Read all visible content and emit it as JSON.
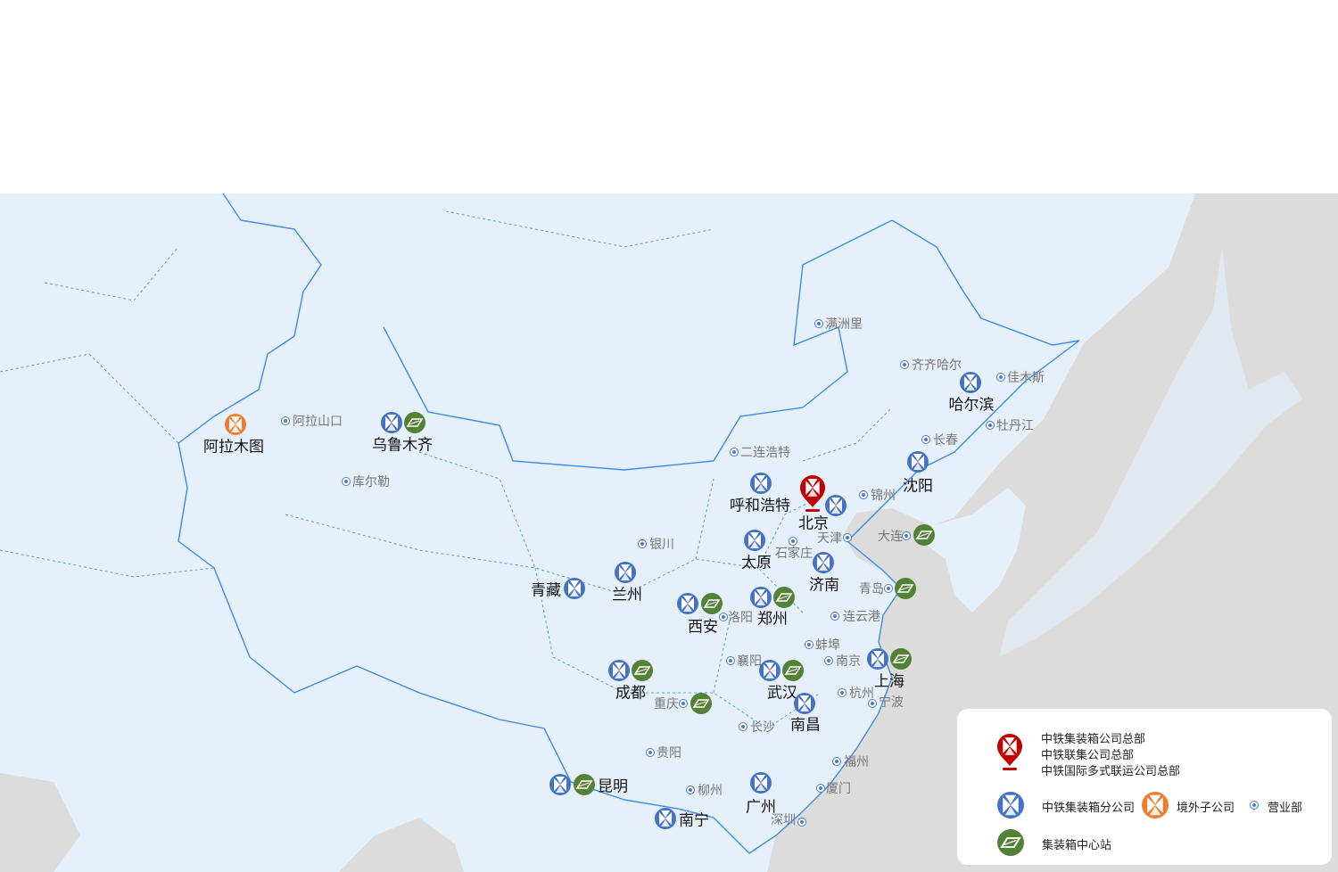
{
  "colors": {
    "branch": "#4472c4",
    "overseas": "#ed7d31",
    "hq": "#c00000",
    "center": "#538135",
    "office": "#4a78c8",
    "land": "#e6f0fb",
    "sea": "#dcdcdc",
    "border": "#3d8be8"
  },
  "cities": [
    {
      "name": "乌鲁木齐",
      "icons": [
        "branch",
        "center"
      ]
    },
    {
      "name": "阿拉木图",
      "icons": [
        "overseas"
      ]
    },
    {
      "name": "哈尔滨",
      "icons": [
        "branch"
      ]
    },
    {
      "name": "沈阳",
      "icons": [
        "branch"
      ]
    },
    {
      "name": "呼和浩特",
      "icons": [
        "branch"
      ]
    },
    {
      "name": "北京",
      "icons": [
        "hq",
        "branch"
      ]
    },
    {
      "name": "太原",
      "icons": [
        "branch"
      ]
    },
    {
      "name": "济南",
      "icons": [
        "branch"
      ]
    },
    {
      "name": "兰州",
      "icons": [
        "branch"
      ]
    },
    {
      "name": "青藏",
      "icons": [
        "branch"
      ]
    },
    {
      "name": "西安",
      "icons": [
        "branch",
        "center"
      ]
    },
    {
      "name": "郑州",
      "icons": [
        "branch",
        "center"
      ]
    },
    {
      "name": "成都",
      "icons": [
        "branch",
        "center"
      ]
    },
    {
      "name": "武汉",
      "icons": [
        "branch",
        "center"
      ]
    },
    {
      "name": "上海",
      "icons": [
        "branch",
        "center"
      ]
    },
    {
      "name": "南昌",
      "icons": [
        "branch"
      ]
    },
    {
      "name": "昆明",
      "icons": [
        "branch",
        "center"
      ]
    },
    {
      "name": "南宁",
      "icons": [
        "branch"
      ]
    },
    {
      "name": "广州",
      "icons": [
        "branch"
      ]
    }
  ],
  "offices": [
    {
      "name": "满洲里",
      "center": false
    },
    {
      "name": "齐齐哈尔",
      "center": false
    },
    {
      "name": "佳木斯",
      "center": false
    },
    {
      "name": "牡丹江",
      "center": false
    },
    {
      "name": "长春",
      "center": false
    },
    {
      "name": "二连浩特",
      "center": false
    },
    {
      "name": "锦州",
      "center": false
    },
    {
      "name": "天津",
      "center": false
    },
    {
      "name": "石家庄",
      "center": false
    },
    {
      "name": "银川",
      "center": false
    },
    {
      "name": "阿拉山口",
      "center": false
    },
    {
      "name": "库尔勒",
      "center": false
    },
    {
      "name": "洛阳",
      "center": false
    },
    {
      "name": "连云港",
      "center": false
    },
    {
      "name": "蚌埠",
      "center": false
    },
    {
      "name": "襄阳",
      "center": false
    },
    {
      "name": "南京",
      "center": false
    },
    {
      "name": "杭州",
      "center": false
    },
    {
      "name": "宁波",
      "center": false
    },
    {
      "name": "长沙",
      "center": false
    },
    {
      "name": "贵阳",
      "center": false
    },
    {
      "name": "福州",
      "center": false
    },
    {
      "name": "厦门",
      "center": false
    },
    {
      "name": "柳州",
      "center": false
    },
    {
      "name": "深圳",
      "center": false
    },
    {
      "name": "大连",
      "center": true
    },
    {
      "name": "青岛",
      "center": true
    },
    {
      "name": "重庆",
      "center": true
    }
  ],
  "legend": {
    "hq_lines": [
      "中铁集装箱公司总部",
      "中铁联集公司总部",
      "中铁国际多式联运公司总部"
    ],
    "branch": "中铁集装箱分公司",
    "overseas": "境外子公司",
    "office": "营业部",
    "center": "集装箱中心站"
  }
}
